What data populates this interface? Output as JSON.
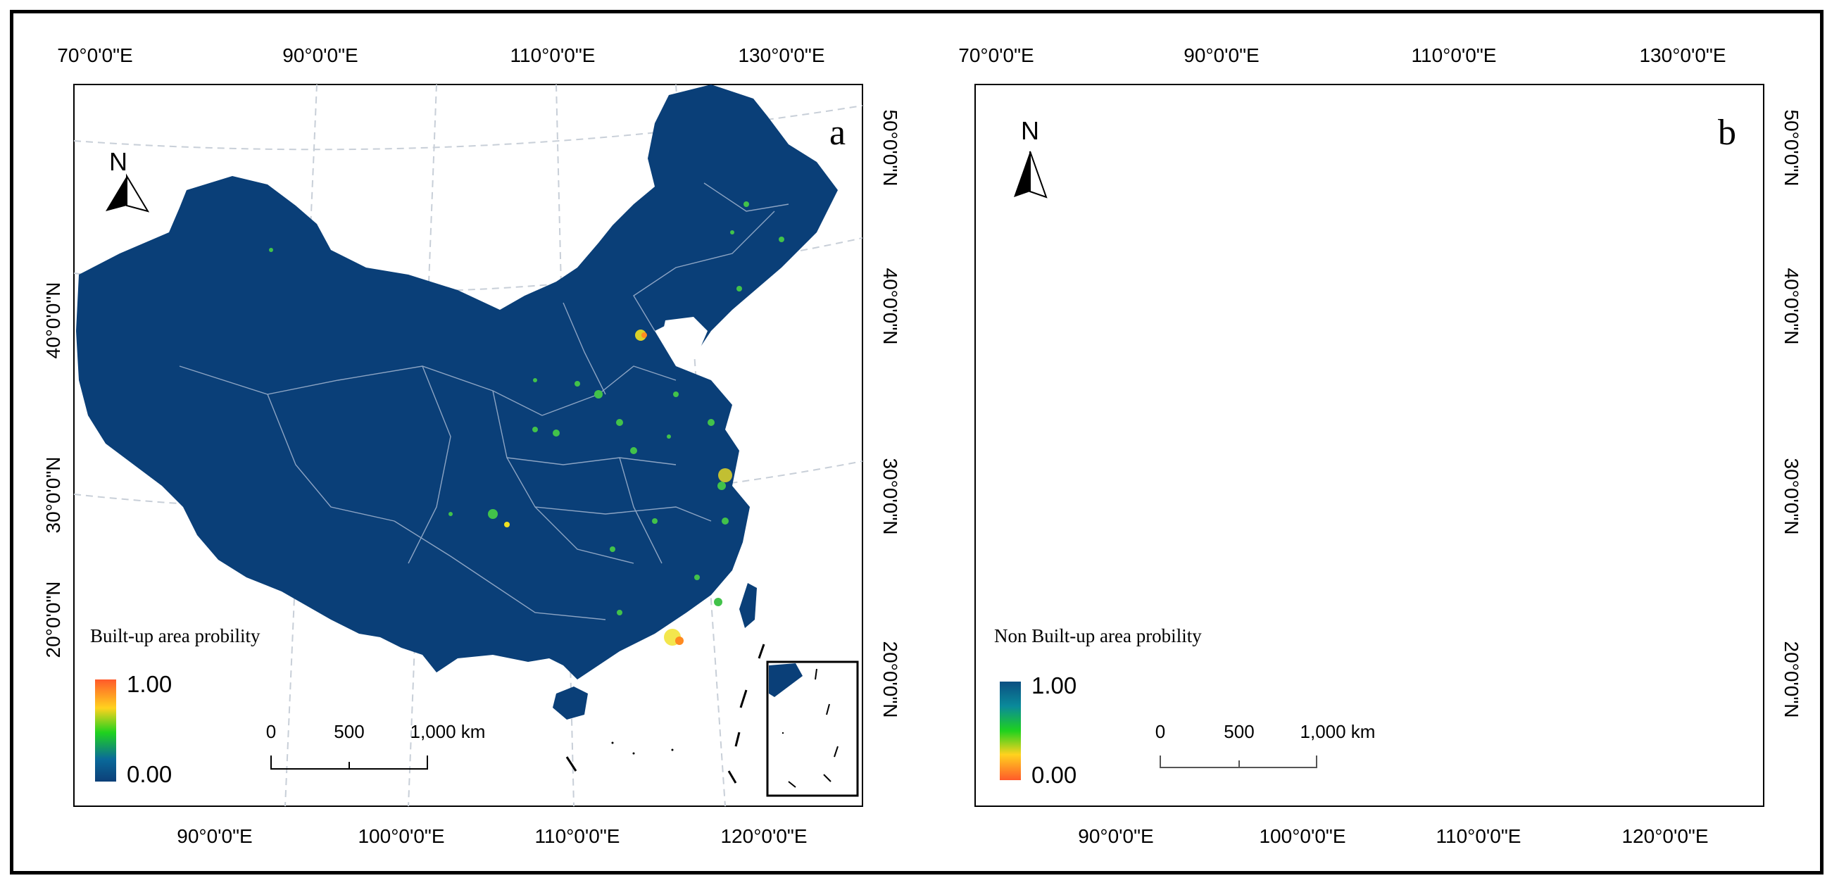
{
  "colors": {
    "land": "#0a3f78",
    "boundary": "#b8c6dd",
    "graticule": "#c8cfd8",
    "frame": "#000000",
    "hot_spot": "#f0e020",
    "warm_spot": "#42c24a"
  },
  "panels": [
    {
      "letter": "a",
      "top_labels": [
        "70°0'0\"E",
        "90°0'0\"E",
        "110°0'0\"E",
        "130°0'0\"E"
      ],
      "bottom_labels": [
        "90°0'0\"E",
        "100°0'0\"E",
        "110°0'0\"E",
        "120°0'0\"E"
      ],
      "right_labels": [
        "50°0'0\"N",
        "40°0'0\"N",
        "30°0'0\"N",
        "20°0'0\"N"
      ],
      "left_labels": [
        "40°0'0\"N",
        "30°0'0\"N",
        "20°0'0\"N"
      ],
      "north_label": "N",
      "legend": {
        "title": "Built-up area probility",
        "max_label": "1.00",
        "min_label": "0.00",
        "gradient": [
          "#ff5a2a",
          "#ffd21e",
          "#1fd21e",
          "#0a6a9a",
          "#0c3f78"
        ]
      },
      "scale_bar": {
        "labels": [
          "0",
          "500",
          "1,000 km"
        ]
      }
    },
    {
      "letter": "b",
      "top_labels": [
        "70°0'0\"E",
        "90°0'0\"E",
        "110°0'0\"E",
        "130°0'0\"E"
      ],
      "bottom_labels": [
        "90°0'0\"E",
        "100°0'0\"E",
        "110°0'0\"E",
        "120°0'0\"E"
      ],
      "right_labels": [
        "50°0'0\"N",
        "40°0'0\"N",
        "30°0'0\"N",
        "20°0'0\"N"
      ],
      "left_labels": [
        "40°0'0\"N",
        "30°0'0\"N",
        "20°0'0\"N"
      ],
      "north_label": "N",
      "legend": {
        "title": "Non Built-up area probility",
        "max_label": "1.00",
        "min_label": "0.00",
        "gradient": [
          "#0c4f82",
          "#0a8a9a",
          "#1fd21e",
          "#ffd21e",
          "#ff5a2a"
        ]
      },
      "scale_bar": {
        "labels": [
          "0",
          "500",
          "1,000 km"
        ]
      }
    }
  ]
}
